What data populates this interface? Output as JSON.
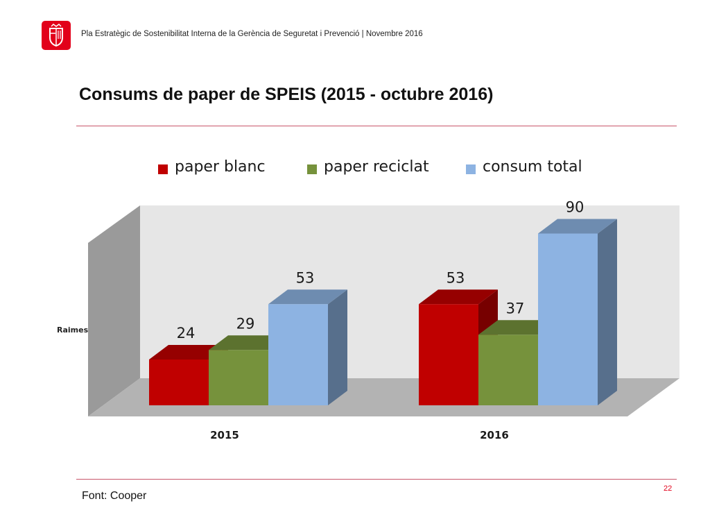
{
  "header": {
    "text": "Pla Estratègic de Sostenibilitat Interna de la Gerència de Seguretat i Prevenció | Novembre 2016",
    "logo": "barcelona-city-council-logo"
  },
  "slide": {
    "title": "Consums de paper de SPEIS (2015 - octubre 2016)",
    "source": "Font: Cooper",
    "page_number": "22"
  },
  "colors": {
    "accent": "#e2001a",
    "rule": "#c8556a"
  },
  "chart_data": {
    "type": "bar",
    "style": "3d-clustered",
    "title": "",
    "xlabel": "",
    "ylabel": "Raimes",
    "categories": [
      "2015",
      "2016"
    ],
    "series": [
      {
        "name": "paper blanc",
        "color": "#c00000",
        "values": [
          24,
          53
        ]
      },
      {
        "name": "paper reciclat",
        "color": "#76923c",
        "values": [
          29,
          37
        ]
      },
      {
        "name": "consum total",
        "color": "#8db3e2",
        "values": [
          53,
          90
        ]
      }
    ],
    "ylim": [
      0,
      90
    ],
    "grid": false,
    "legend": "top"
  }
}
